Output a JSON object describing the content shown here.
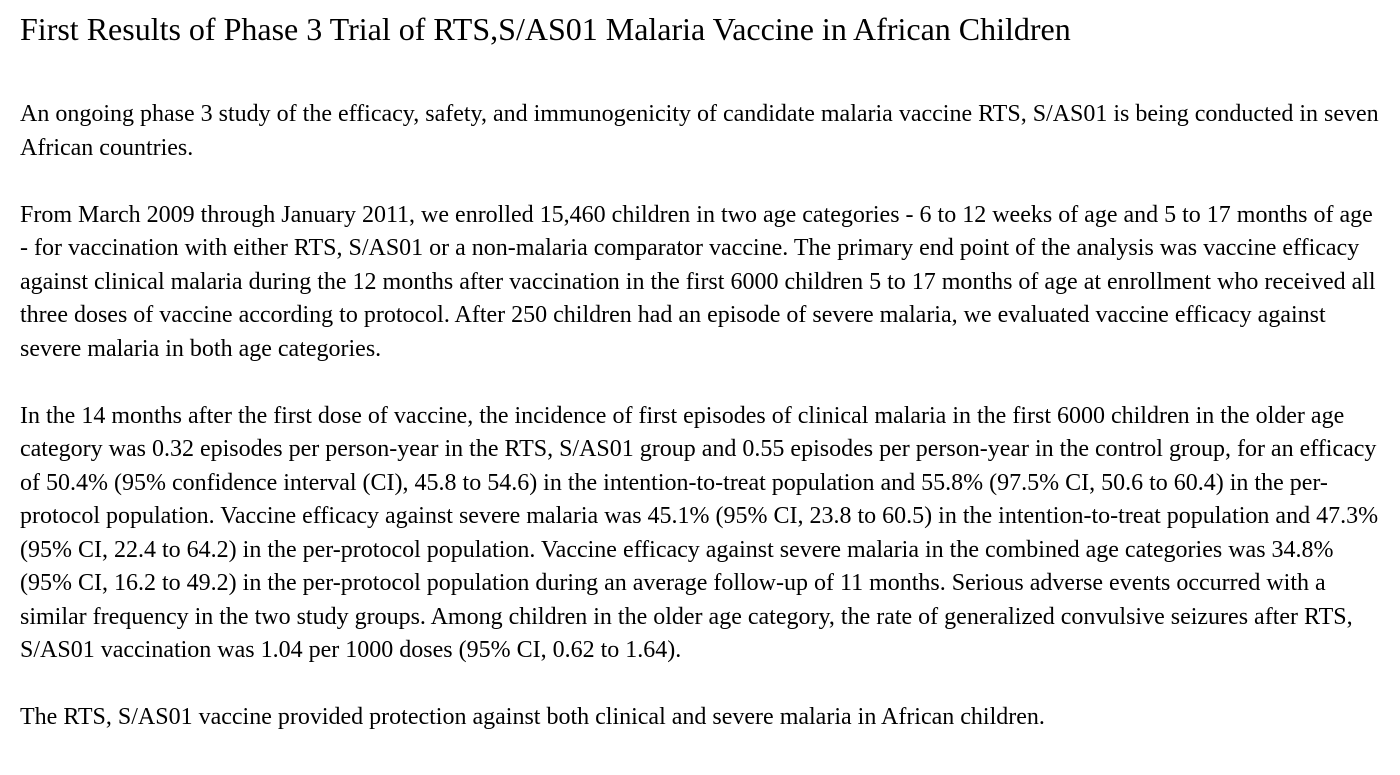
{
  "document": {
    "title": "First Results of Phase 3 Trial of RTS,S/AS01 Malaria Vaccine in African Children",
    "paragraphs": [
      "An ongoing phase 3 study of the efficacy, safety, and immunogenicity of candidate malaria vaccine RTS, S/AS01 is being conducted in seven African countries.",
      "From March 2009 through January 2011, we enrolled 15,460 children in two age categories - 6 to 12 weeks of age and 5 to 17 months of age - for vaccination with either RTS, S/AS01 or a non-malaria comparator vaccine. The primary end point of the analysis was vaccine efficacy against clinical malaria during the 12 months after vaccination in the first 6000 children 5 to 17 months of age at enrollment who received all three doses of vaccine according to protocol. After 250 children had an episode of severe malaria, we evaluated vaccine efficacy against severe malaria in both age categories.",
      "In the 14 months after the first dose of vaccine, the incidence of first episodes of clinical malaria in the first 6000 children in the older age category was 0.32 episodes per person-year in the RTS, S/AS01 group and 0.55 episodes per person-year in the control group, for an efficacy of 50.4% (95% confidence interval (CI), 45.8 to 54.6) in the intention-to-treat population and 55.8% (97.5% CI, 50.6 to 60.4) in the per-protocol population. Vaccine efficacy against severe malaria was 45.1% (95% CI, 23.8 to 60.5) in the intention-to-treat population and 47.3% (95% CI, 22.4 to 64.2) in the per-protocol population. Vaccine efficacy against severe malaria in the combined age categories was 34.8% (95% CI, 16.2 to 49.2) in the per-protocol population during an average follow-up of 11 months. Serious adverse events occurred with a similar frequency in the two study groups. Among children in the older age category, the rate of generalized convulsive seizures after RTS, S/AS01 vaccination was 1.04 per 1000 doses (95% CI, 0.62 to 1.64).",
      "The RTS, S/AS01 vaccine provided protection against both clinical and severe malaria in African children."
    ]
  }
}
